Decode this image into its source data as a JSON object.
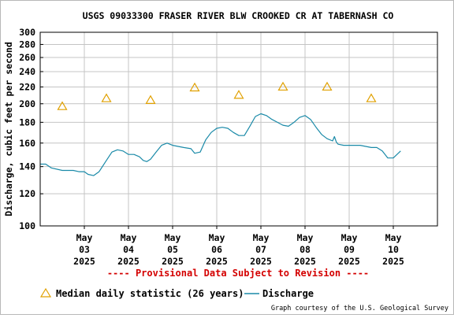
{
  "chart_data": {
    "type": "line",
    "title": "USGS 09033300 FRASER RIVER BLW CROOKED CR AT TABERNASH CO",
    "ylabel": "Discharge, cubic feet per second",
    "xlabel": "",
    "y_scale": "log",
    "ylim": [
      100,
      300
    ],
    "y_ticks": [
      100,
      120,
      140,
      160,
      180,
      200,
      220,
      240,
      260,
      280,
      300
    ],
    "y_tick_labels": [
      "100",
      "120",
      "140",
      "160",
      "180",
      "200",
      "220",
      "240",
      "260",
      "280",
      "300"
    ],
    "x_range": [
      "2025-05-02",
      "2025-05-10"
    ],
    "x_ticks": [
      {
        "date": "2025-05-03",
        "label": [
          "May",
          "03",
          "2025"
        ]
      },
      {
        "date": "2025-05-04",
        "label": [
          "May",
          "04",
          "2025"
        ]
      },
      {
        "date": "2025-05-05",
        "label": [
          "May",
          "05",
          "2025"
        ]
      },
      {
        "date": "2025-05-06",
        "label": [
          "May",
          "06",
          "2025"
        ]
      },
      {
        "date": "2025-05-07",
        "label": [
          "May",
          "07",
          "2025"
        ]
      },
      {
        "date": "2025-05-08",
        "label": [
          "May",
          "08",
          "2025"
        ]
      },
      {
        "date": "2025-05-09",
        "label": [
          "May",
          "09",
          "2025"
        ]
      },
      {
        "date": "2025-05-10",
        "label": [
          "May",
          "10",
          "2025"
        ]
      }
    ],
    "grid": true,
    "series": [
      {
        "name": "Discharge",
        "color": "#1a8aa8",
        "style": "line",
        "points": [
          [
            "2025-05-02T00:00",
            142
          ],
          [
            "2025-05-02T03:00",
            142
          ],
          [
            "2025-05-02T06:00",
            139
          ],
          [
            "2025-05-02T12:00",
            137
          ],
          [
            "2025-05-02T18:00",
            137
          ],
          [
            "2025-05-02T21:00",
            136
          ],
          [
            "2025-05-03T00:00",
            136
          ],
          [
            "2025-05-03T02:00",
            134
          ],
          [
            "2025-05-03T05:00",
            133
          ],
          [
            "2025-05-03T08:00",
            136
          ],
          [
            "2025-05-03T12:00",
            145
          ],
          [
            "2025-05-03T15:00",
            152
          ],
          [
            "2025-05-03T18:00",
            154
          ],
          [
            "2025-05-03T21:00",
            153
          ],
          [
            "2025-05-04T00:00",
            150
          ],
          [
            "2025-05-04T03:00",
            150
          ],
          [
            "2025-05-04T06:00",
            148
          ],
          [
            "2025-05-04T08:00",
            145
          ],
          [
            "2025-05-04T10:00",
            144
          ],
          [
            "2025-05-04T12:00",
            146
          ],
          [
            "2025-05-04T15:00",
            152
          ],
          [
            "2025-05-04T18:00",
            158
          ],
          [
            "2025-05-04T21:00",
            160
          ],
          [
            "2025-05-05T00:00",
            158
          ],
          [
            "2025-05-05T06:00",
            156
          ],
          [
            "2025-05-05T10:00",
            155
          ],
          [
            "2025-05-05T12:00",
            151
          ],
          [
            "2025-05-05T15:00",
            152
          ],
          [
            "2025-05-05T18:00",
            163
          ],
          [
            "2025-05-05T21:00",
            170
          ],
          [
            "2025-05-06T00:00",
            174
          ],
          [
            "2025-05-06T03:00",
            175
          ],
          [
            "2025-05-06T06:00",
            174
          ],
          [
            "2025-05-06T09:00",
            170
          ],
          [
            "2025-05-06T12:00",
            167
          ],
          [
            "2025-05-06T15:00",
            167
          ],
          [
            "2025-05-06T18:00",
            176
          ],
          [
            "2025-05-06T21:00",
            186
          ],
          [
            "2025-05-07T00:00",
            189
          ],
          [
            "2025-05-07T03:00",
            187
          ],
          [
            "2025-05-07T06:00",
            183
          ],
          [
            "2025-05-07T09:00",
            180
          ],
          [
            "2025-05-07T12:00",
            177
          ],
          [
            "2025-05-07T15:00",
            176
          ],
          [
            "2025-05-07T18:00",
            180
          ],
          [
            "2025-05-07T21:00",
            185
          ],
          [
            "2025-05-08T00:00",
            187
          ],
          [
            "2025-05-08T03:00",
            183
          ],
          [
            "2025-05-08T06:00",
            175
          ],
          [
            "2025-05-08T09:00",
            168
          ],
          [
            "2025-05-08T12:00",
            164
          ],
          [
            "2025-05-08T15:00",
            162
          ],
          [
            "2025-05-08T16:00",
            166
          ],
          [
            "2025-05-08T17:00",
            161
          ],
          [
            "2025-05-08T18:00",
            159
          ],
          [
            "2025-05-08T21:00",
            158
          ],
          [
            "2025-05-09T00:00",
            158
          ],
          [
            "2025-05-09T06:00",
            158
          ],
          [
            "2025-05-09T12:00",
            156
          ],
          [
            "2025-05-09T15:00",
            156
          ],
          [
            "2025-05-09T18:00",
            153
          ],
          [
            "2025-05-09T21:00",
            147
          ],
          [
            "2025-05-10T00:00",
            147
          ],
          [
            "2025-05-10T02:00",
            150
          ],
          [
            "2025-05-10T04:00",
            153
          ]
        ]
      },
      {
        "name": "Median daily statistic (26 years)",
        "color": "#e0a000",
        "style": "triangle",
        "points": [
          [
            "2025-05-02T12:00",
            197
          ],
          [
            "2025-05-03T12:00",
            206
          ],
          [
            "2025-05-04T12:00",
            204
          ],
          [
            "2025-05-05T12:00",
            219
          ],
          [
            "2025-05-06T12:00",
            210
          ],
          [
            "2025-05-07T12:00",
            220
          ],
          [
            "2025-05-08T12:00",
            220
          ],
          [
            "2025-05-09T12:00",
            206
          ]
        ]
      }
    ],
    "legend": {
      "placement": "bottom-left",
      "items": [
        {
          "label": "Median daily statistic (26 years)",
          "symbol": "triangle",
          "color": "#e0a000"
        },
        {
          "label": "Discharge",
          "symbol": "line",
          "color": "#1a8aa8"
        }
      ]
    },
    "annotations": {
      "provisional": "---- Provisional Data Subject to Revision ----",
      "credit": "Graph courtesy of the U.S. Geological Survey"
    }
  }
}
